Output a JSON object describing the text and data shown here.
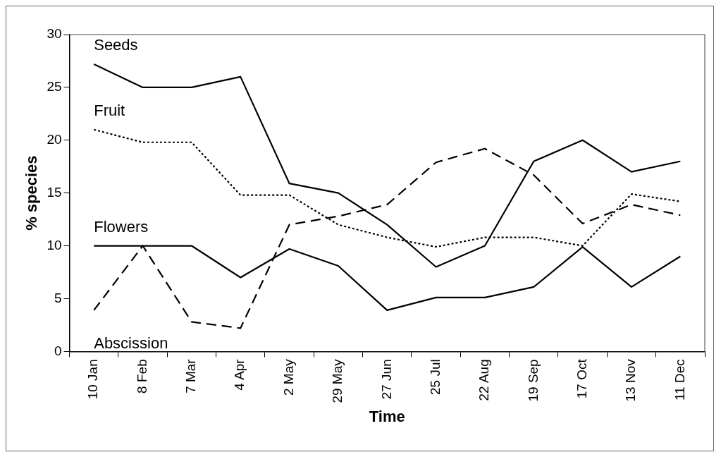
{
  "chart_data": {
    "type": "line",
    "xlabel": "Time",
    "ylabel": "% species",
    "categories": [
      "10 Jan",
      "8 Feb",
      "7 Mar",
      "4 Apr",
      "2 May",
      "29 May",
      "27 Jun",
      "25 Jul",
      "22 Aug",
      "19 Sep",
      "17 Oct",
      "13 Nov",
      "11 Dec"
    ],
    "series": [
      {
        "name": "Seeds",
        "color": "#000000",
        "line_style": "solid",
        "values": [
          27.2,
          25,
          25,
          26,
          15.9,
          15,
          12,
          8,
          10,
          18,
          20,
          17,
          18
        ]
      },
      {
        "name": "Fruit",
        "color": "#000000",
        "line_style": "dotted",
        "values": [
          21,
          19.8,
          19.8,
          14.8,
          14.8,
          12,
          10.8,
          9.9,
          10.8,
          10.8,
          10,
          14.9,
          14.2
        ]
      },
      {
        "name": "Flowers",
        "color": "#000000",
        "line_style": "solid",
        "values": [
          10,
          10,
          10,
          7,
          9.7,
          8.1,
          3.9,
          5.1,
          5.1,
          6.1,
          9.9,
          6.1,
          9
        ]
      },
      {
        "name": "Abscission",
        "color": "#000000",
        "line_style": "dashed",
        "values": [
          3.9,
          10,
          2.8,
          2.2,
          12,
          12.8,
          13.9,
          17.9,
          19.2,
          16.7,
          12.1,
          13.9,
          12.9
        ]
      }
    ],
    "ylim": [
      0,
      30
    ],
    "yticks": [
      0,
      5,
      10,
      15,
      20,
      25,
      30
    ],
    "grid": false,
    "legend": false,
    "marker": "none"
  }
}
